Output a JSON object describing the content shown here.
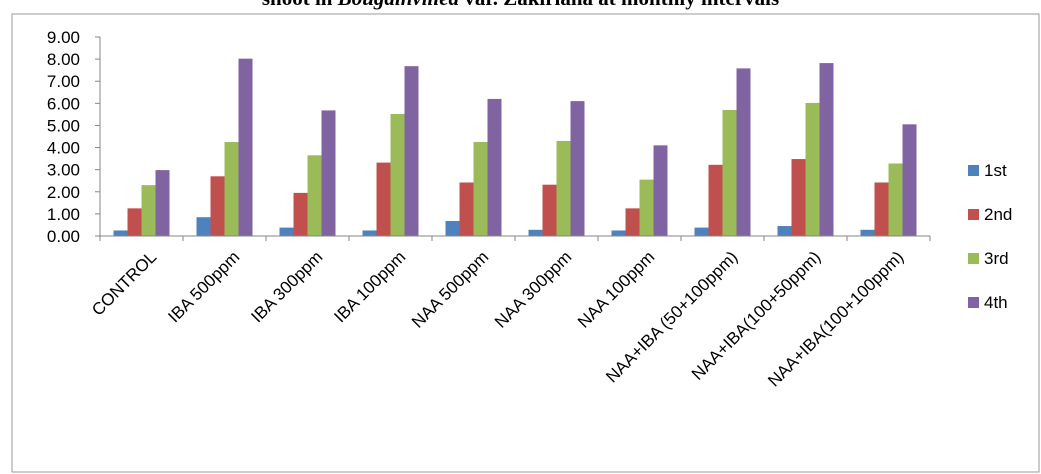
{
  "caption": {
    "prefix": "shoot in ",
    "italic": "Bougainvillea",
    "suffix": " var. Zakiriana at monthly intervals"
  },
  "chart_data": {
    "type": "bar",
    "title": "",
    "xlabel": "",
    "ylabel": "",
    "ylim": [
      0,
      9
    ],
    "ytick_labels": [
      "0.00",
      "1.00",
      "2.00",
      "3.00",
      "4.00",
      "5.00",
      "6.00",
      "7.00",
      "8.00",
      "9.00"
    ],
    "grid": false,
    "legend_position": "right",
    "categories": [
      "CONTROL",
      "IBA 500ppm",
      "IBA 300ppm",
      "IBA 100ppm",
      "NAA 500ppm",
      "NAA 300ppm",
      "NAA 100ppm",
      "NAA+IBA (50+100ppm)",
      "NAA+IBA(100+50ppm)",
      "NAA+IBA(100+100ppm)"
    ],
    "series": [
      {
        "name": "1st",
        "color": "#4f81bd",
        "values": [
          0.25,
          0.85,
          0.38,
          0.25,
          0.68,
          0.28,
          0.25,
          0.38,
          0.45,
          0.28
        ]
      },
      {
        "name": "2nd",
        "color": "#c0504d",
        "values": [
          1.25,
          2.7,
          1.95,
          3.32,
          2.42,
          2.32,
          1.25,
          3.22,
          3.48,
          2.42
        ]
      },
      {
        "name": "3rd",
        "color": "#9bbb59",
        "values": [
          2.3,
          4.25,
          3.65,
          5.52,
          4.25,
          4.3,
          2.55,
          5.7,
          6.02,
          3.28
        ]
      },
      {
        "name": "4th",
        "color": "#8064a2",
        "values": [
          2.98,
          8.02,
          5.68,
          7.68,
          6.2,
          6.1,
          4.1,
          7.58,
          7.82,
          5.05
        ]
      }
    ]
  }
}
